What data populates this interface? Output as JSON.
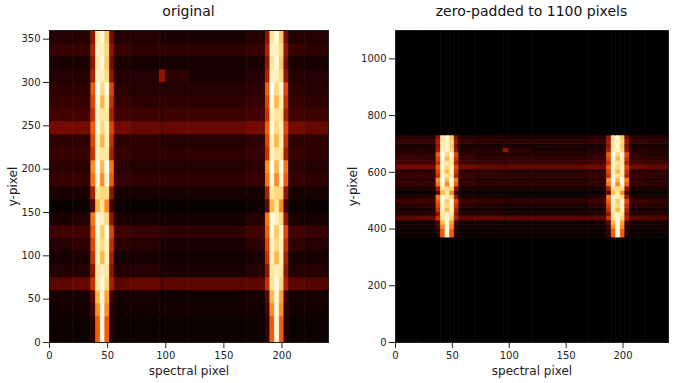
{
  "chart_data": [
    {
      "type": "heatmap",
      "title": "original",
      "x_label": "spectral pixel",
      "y_label": "y-pixel",
      "xlim": [
        0,
        240
      ],
      "ylim": [
        0,
        360
      ],
      "xticks": [
        0,
        50,
        100,
        150,
        200
      ],
      "yticks": [
        0,
        50,
        100,
        150,
        200,
        250,
        300,
        350
      ],
      "zlim": [
        0,
        1
      ],
      "x_edges": [
        0,
        20,
        36,
        40,
        44,
        48,
        52,
        56,
        70,
        95,
        100,
        120,
        170,
        186,
        190,
        194,
        198,
        202,
        206,
        220,
        240
      ],
      "y_edges": [
        0,
        15,
        30,
        45,
        60,
        75,
        90,
        105,
        120,
        135,
        150,
        165,
        180,
        195,
        210,
        225,
        240,
        255,
        270,
        285,
        300,
        315,
        330,
        345,
        360
      ],
      "z": [
        [
          0.03,
          0.03,
          0.1,
          0.5,
          0.95,
          0.5,
          0.08,
          0.03,
          0.03,
          0.03,
          0.03,
          0.03,
          0.03,
          0.1,
          0.5,
          0.95,
          0.5,
          0.08,
          0.03,
          0.03
        ],
        [
          0.03,
          0.03,
          0.1,
          0.5,
          0.95,
          0.5,
          0.08,
          0.03,
          0.03,
          0.03,
          0.03,
          0.03,
          0.03,
          0.1,
          0.5,
          0.95,
          0.5,
          0.08,
          0.03,
          0.03
        ],
        [
          0.04,
          0.04,
          0.15,
          0.6,
          0.95,
          0.6,
          0.1,
          0.04,
          0.04,
          0.04,
          0.04,
          0.04,
          0.04,
          0.15,
          0.6,
          0.95,
          0.6,
          0.1,
          0.04,
          0.04
        ],
        [
          0.05,
          0.05,
          0.2,
          0.7,
          0.95,
          0.65,
          0.15,
          0.05,
          0.05,
          0.04,
          0.04,
          0.04,
          0.05,
          0.2,
          0.7,
          0.95,
          0.65,
          0.15,
          0.05,
          0.05
        ],
        [
          0.2,
          0.22,
          0.4,
          0.85,
          0.95,
          0.8,
          0.35,
          0.2,
          0.22,
          0.18,
          0.2,
          0.2,
          0.2,
          0.4,
          0.85,
          0.95,
          0.8,
          0.35,
          0.2,
          0.18
        ],
        [
          0.08,
          0.08,
          0.3,
          0.85,
          0.9,
          0.85,
          0.3,
          0.08,
          0.08,
          0.06,
          0.06,
          0.06,
          0.08,
          0.3,
          0.85,
          0.9,
          0.85,
          0.3,
          0.08,
          0.08
        ],
        [
          0.05,
          0.06,
          0.4,
          0.9,
          0.7,
          0.9,
          0.35,
          0.05,
          0.05,
          0.04,
          0.04,
          0.04,
          0.06,
          0.4,
          0.9,
          0.7,
          0.9,
          0.35,
          0.05,
          0.05
        ],
        [
          0.08,
          0.1,
          0.45,
          0.9,
          0.8,
          0.9,
          0.4,
          0.1,
          0.08,
          0.06,
          0.06,
          0.06,
          0.1,
          0.45,
          0.9,
          0.8,
          0.9,
          0.4,
          0.1,
          0.08
        ],
        [
          0.14,
          0.15,
          0.5,
          0.95,
          0.75,
          0.95,
          0.45,
          0.14,
          0.12,
          0.1,
          0.1,
          0.1,
          0.14,
          0.5,
          0.95,
          0.75,
          0.95,
          0.45,
          0.14,
          0.12
        ],
        [
          0.06,
          0.08,
          0.55,
          0.95,
          0.9,
          0.8,
          0.3,
          0.06,
          0.05,
          0.04,
          0.04,
          0.04,
          0.08,
          0.55,
          0.95,
          0.9,
          0.8,
          0.3,
          0.06,
          0.05
        ],
        [
          0.02,
          0.03,
          0.2,
          0.7,
          0.85,
          0.6,
          0.15,
          0.03,
          0.02,
          0.02,
          0.02,
          0.02,
          0.03,
          0.2,
          0.7,
          0.85,
          0.6,
          0.15,
          0.03,
          0.02
        ],
        [
          0.06,
          0.06,
          0.35,
          0.85,
          0.8,
          0.8,
          0.3,
          0.06,
          0.05,
          0.05,
          0.05,
          0.05,
          0.06,
          0.35,
          0.85,
          0.8,
          0.8,
          0.3,
          0.06,
          0.05
        ],
        [
          0.12,
          0.12,
          0.55,
          0.95,
          0.6,
          0.95,
          0.5,
          0.12,
          0.1,
          0.1,
          0.1,
          0.1,
          0.12,
          0.55,
          0.95,
          0.6,
          0.95,
          0.5,
          0.12,
          0.1
        ],
        [
          0.1,
          0.1,
          0.6,
          1.0,
          0.7,
          1.0,
          0.55,
          0.1,
          0.08,
          0.08,
          0.08,
          0.08,
          0.1,
          0.6,
          1.0,
          0.7,
          1.0,
          0.55,
          0.1,
          0.08
        ],
        [
          0.12,
          0.12,
          0.4,
          0.9,
          0.85,
          0.85,
          0.35,
          0.12,
          0.1,
          0.1,
          0.1,
          0.1,
          0.12,
          0.4,
          0.9,
          0.85,
          0.85,
          0.35,
          0.12,
          0.1
        ],
        [
          0.1,
          0.1,
          0.45,
          0.9,
          0.7,
          0.9,
          0.4,
          0.1,
          0.1,
          0.08,
          0.08,
          0.08,
          0.1,
          0.45,
          0.9,
          0.7,
          0.9,
          0.4,
          0.1,
          0.1
        ],
        [
          0.25,
          0.25,
          0.5,
          0.95,
          0.8,
          0.9,
          0.45,
          0.25,
          0.22,
          0.2,
          0.22,
          0.22,
          0.25,
          0.5,
          0.95,
          0.8,
          0.9,
          0.45,
          0.25,
          0.22
        ],
        [
          0.15,
          0.15,
          0.4,
          0.9,
          0.85,
          0.85,
          0.35,
          0.15,
          0.14,
          0.12,
          0.14,
          0.14,
          0.15,
          0.4,
          0.9,
          0.85,
          0.85,
          0.35,
          0.15,
          0.14
        ],
        [
          0.12,
          0.12,
          0.45,
          0.95,
          0.7,
          0.9,
          0.4,
          0.12,
          0.1,
          0.1,
          0.1,
          0.1,
          0.12,
          0.45,
          0.95,
          0.7,
          0.9,
          0.4,
          0.12,
          0.1
        ],
        [
          0.1,
          0.1,
          0.5,
          1.0,
          0.8,
          0.95,
          0.45,
          0.1,
          0.08,
          0.08,
          0.08,
          0.08,
          0.1,
          0.5,
          1.0,
          0.8,
          0.95,
          0.45,
          0.1,
          0.08
        ],
        [
          0.08,
          0.08,
          0.35,
          0.9,
          0.9,
          0.8,
          0.3,
          0.08,
          0.08,
          0.3,
          0.1,
          0.06,
          0.08,
          0.35,
          0.9,
          0.9,
          0.8,
          0.3,
          0.08,
          0.08
        ],
        [
          0.06,
          0.06,
          0.3,
          0.85,
          0.95,
          0.75,
          0.25,
          0.06,
          0.05,
          0.05,
          0.05,
          0.05,
          0.06,
          0.3,
          0.85,
          0.95,
          0.75,
          0.25,
          0.06,
          0.05
        ],
        [
          0.12,
          0.12,
          0.35,
          0.9,
          0.9,
          0.8,
          0.3,
          0.12,
          0.1,
          0.1,
          0.1,
          0.1,
          0.12,
          0.35,
          0.9,
          0.9,
          0.8,
          0.3,
          0.12,
          0.1
        ],
        [
          0.08,
          0.08,
          0.3,
          0.85,
          0.95,
          0.75,
          0.25,
          0.08,
          0.08,
          0.06,
          0.06,
          0.06,
          0.08,
          0.3,
          0.85,
          0.95,
          0.75,
          0.25,
          0.08,
          0.08
        ]
      ]
    },
    {
      "type": "heatmap",
      "title": "zero-padded to 1100 pixels",
      "x_label": "spectral pixel",
      "y_label": "y-pixel",
      "xlim": [
        0,
        240
      ],
      "ylim": [
        0,
        1100
      ],
      "xticks": [
        0,
        50,
        100,
        150,
        200
      ],
      "yticks": [
        0,
        200,
        400,
        600,
        800,
        1000
      ],
      "zlim": [
        0,
        1
      ],
      "x_edges": [
        0,
        20,
        36,
        40,
        44,
        48,
        52,
        56,
        70,
        95,
        100,
        120,
        170,
        186,
        190,
        194,
        198,
        202,
        206,
        220,
        240
      ],
      "y_edges": [
        0,
        370,
        385,
        400,
        415,
        430,
        445,
        460,
        475,
        490,
        505,
        520,
        535,
        550,
        565,
        580,
        595,
        610,
        625,
        640,
        655,
        670,
        685,
        700,
        715,
        730,
        1100
      ],
      "z": [
        [
          0,
          0,
          0,
          0,
          0,
          0,
          0,
          0,
          0,
          0,
          0,
          0,
          0,
          0,
          0,
          0,
          0,
          0,
          0,
          0
        ],
        [
          0.03,
          0.03,
          0.1,
          0.5,
          0.95,
          0.5,
          0.08,
          0.03,
          0.03,
          0.03,
          0.03,
          0.03,
          0.03,
          0.1,
          0.5,
          0.95,
          0.5,
          0.08,
          0.03,
          0.03
        ],
        [
          0.03,
          0.03,
          0.1,
          0.5,
          0.95,
          0.5,
          0.08,
          0.03,
          0.03,
          0.03,
          0.03,
          0.03,
          0.03,
          0.1,
          0.5,
          0.95,
          0.5,
          0.08,
          0.03,
          0.03
        ],
        [
          0.04,
          0.04,
          0.15,
          0.6,
          0.95,
          0.6,
          0.1,
          0.04,
          0.04,
          0.04,
          0.04,
          0.04,
          0.04,
          0.15,
          0.6,
          0.95,
          0.6,
          0.1,
          0.04,
          0.04
        ],
        [
          0.05,
          0.05,
          0.2,
          0.7,
          0.95,
          0.65,
          0.15,
          0.05,
          0.05,
          0.04,
          0.04,
          0.04,
          0.05,
          0.2,
          0.7,
          0.95,
          0.65,
          0.15,
          0.05,
          0.05
        ],
        [
          0.2,
          0.22,
          0.4,
          0.85,
          0.95,
          0.8,
          0.35,
          0.2,
          0.22,
          0.18,
          0.2,
          0.2,
          0.2,
          0.4,
          0.85,
          0.95,
          0.8,
          0.35,
          0.2,
          0.18
        ],
        [
          0.08,
          0.08,
          0.3,
          0.85,
          0.9,
          0.85,
          0.3,
          0.08,
          0.08,
          0.06,
          0.06,
          0.06,
          0.08,
          0.3,
          0.85,
          0.9,
          0.85,
          0.3,
          0.08,
          0.08
        ],
        [
          0.05,
          0.06,
          0.4,
          0.9,
          0.7,
          0.9,
          0.35,
          0.05,
          0.05,
          0.04,
          0.04,
          0.04,
          0.06,
          0.4,
          0.9,
          0.7,
          0.9,
          0.35,
          0.05,
          0.05
        ],
        [
          0.08,
          0.1,
          0.45,
          0.9,
          0.8,
          0.9,
          0.4,
          0.1,
          0.08,
          0.06,
          0.06,
          0.06,
          0.1,
          0.45,
          0.9,
          0.8,
          0.9,
          0.4,
          0.1,
          0.08
        ],
        [
          0.14,
          0.15,
          0.5,
          0.95,
          0.75,
          0.95,
          0.45,
          0.14,
          0.12,
          0.1,
          0.1,
          0.1,
          0.14,
          0.5,
          0.95,
          0.75,
          0.95,
          0.45,
          0.14,
          0.12
        ],
        [
          0.06,
          0.08,
          0.55,
          0.95,
          0.9,
          0.8,
          0.3,
          0.06,
          0.05,
          0.04,
          0.04,
          0.04,
          0.08,
          0.55,
          0.95,
          0.9,
          0.8,
          0.3,
          0.06,
          0.05
        ],
        [
          0.02,
          0.03,
          0.2,
          0.7,
          0.85,
          0.6,
          0.15,
          0.03,
          0.02,
          0.02,
          0.02,
          0.02,
          0.03,
          0.2,
          0.7,
          0.85,
          0.6,
          0.15,
          0.03,
          0.02
        ],
        [
          0.06,
          0.06,
          0.35,
          0.85,
          0.8,
          0.8,
          0.3,
          0.06,
          0.05,
          0.05,
          0.05,
          0.05,
          0.06,
          0.35,
          0.85,
          0.8,
          0.8,
          0.3,
          0.06,
          0.05
        ],
        [
          0.12,
          0.12,
          0.55,
          0.95,
          0.6,
          0.95,
          0.5,
          0.12,
          0.1,
          0.1,
          0.1,
          0.1,
          0.12,
          0.55,
          0.95,
          0.6,
          0.95,
          0.5,
          0.12,
          0.1
        ],
        [
          0.1,
          0.1,
          0.6,
          1.0,
          0.7,
          1.0,
          0.55,
          0.1,
          0.08,
          0.08,
          0.08,
          0.08,
          0.1,
          0.6,
          1.0,
          0.7,
          1.0,
          0.55,
          0.1,
          0.08
        ],
        [
          0.12,
          0.12,
          0.4,
          0.9,
          0.85,
          0.85,
          0.35,
          0.12,
          0.1,
          0.1,
          0.1,
          0.1,
          0.12,
          0.4,
          0.9,
          0.85,
          0.85,
          0.35,
          0.12,
          0.1
        ],
        [
          0.1,
          0.1,
          0.45,
          0.9,
          0.7,
          0.9,
          0.4,
          0.1,
          0.1,
          0.08,
          0.08,
          0.08,
          0.1,
          0.45,
          0.9,
          0.7,
          0.9,
          0.4,
          0.1,
          0.1
        ],
        [
          0.25,
          0.25,
          0.5,
          0.95,
          0.8,
          0.9,
          0.45,
          0.25,
          0.22,
          0.2,
          0.22,
          0.22,
          0.25,
          0.5,
          0.95,
          0.8,
          0.9,
          0.45,
          0.25,
          0.22
        ],
        [
          0.15,
          0.15,
          0.4,
          0.9,
          0.85,
          0.85,
          0.35,
          0.15,
          0.14,
          0.12,
          0.14,
          0.14,
          0.15,
          0.4,
          0.9,
          0.85,
          0.85,
          0.35,
          0.15,
          0.14
        ],
        [
          0.12,
          0.12,
          0.45,
          0.95,
          0.7,
          0.9,
          0.4,
          0.12,
          0.1,
          0.1,
          0.1,
          0.1,
          0.12,
          0.45,
          0.95,
          0.7,
          0.9,
          0.4,
          0.12,
          0.1
        ],
        [
          0.1,
          0.1,
          0.5,
          1.0,
          0.8,
          0.95,
          0.45,
          0.1,
          0.08,
          0.08,
          0.08,
          0.08,
          0.1,
          0.5,
          1.0,
          0.8,
          0.95,
          0.45,
          0.1,
          0.08
        ],
        [
          0.08,
          0.08,
          0.35,
          0.9,
          0.9,
          0.8,
          0.3,
          0.08,
          0.08,
          0.3,
          0.1,
          0.06,
          0.08,
          0.35,
          0.9,
          0.9,
          0.8,
          0.3,
          0.08,
          0.08
        ],
        [
          0.06,
          0.06,
          0.3,
          0.85,
          0.95,
          0.75,
          0.25,
          0.06,
          0.05,
          0.05,
          0.05,
          0.05,
          0.06,
          0.3,
          0.85,
          0.95,
          0.75,
          0.25,
          0.06,
          0.05
        ],
        [
          0.12,
          0.12,
          0.35,
          0.9,
          0.9,
          0.8,
          0.3,
          0.12,
          0.1,
          0.1,
          0.1,
          0.1,
          0.12,
          0.35,
          0.9,
          0.9,
          0.8,
          0.3,
          0.12,
          0.1
        ],
        [
          0.08,
          0.08,
          0.3,
          0.85,
          0.95,
          0.75,
          0.25,
          0.08,
          0.08,
          0.06,
          0.06,
          0.06,
          0.08,
          0.3,
          0.85,
          0.95,
          0.75,
          0.25,
          0.08,
          0.08
        ],
        [
          0,
          0,
          0,
          0,
          0,
          0,
          0,
          0,
          0,
          0,
          0,
          0,
          0,
          0,
          0,
          0,
          0,
          0,
          0,
          0
        ]
      ]
    }
  ]
}
